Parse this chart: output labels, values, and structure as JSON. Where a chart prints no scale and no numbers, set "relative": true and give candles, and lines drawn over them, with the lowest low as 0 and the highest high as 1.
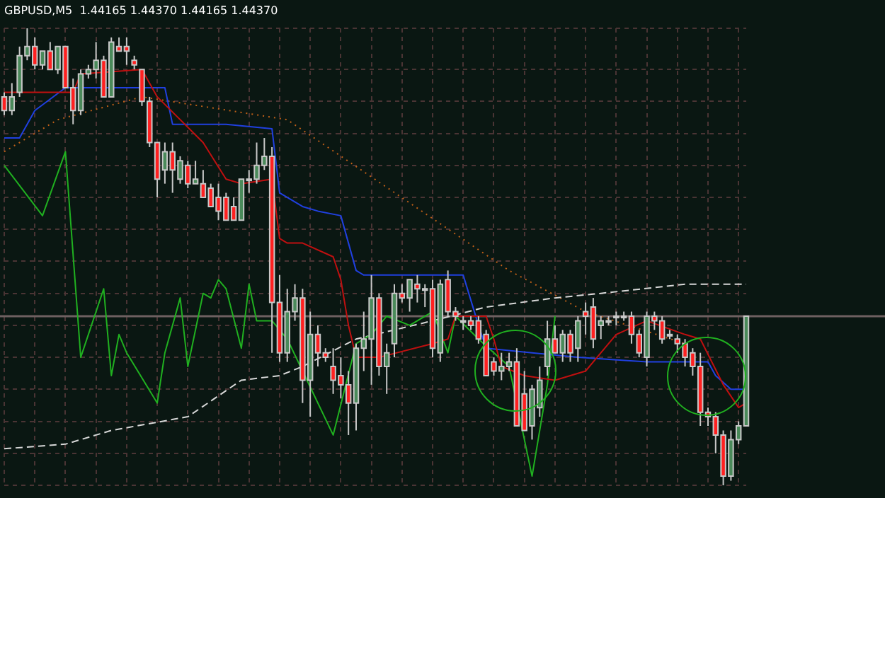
{
  "chart_data": {
    "type": "candlestick",
    "title": "GBPUSD,M5  1.44165 1.44370 1.44165 1.44370",
    "relative": true,
    "grid": true,
    "legend": false,
    "marker": "none",
    "categories": [
      null,
      null,
      null,
      null,
      null,
      null,
      null,
      null,
      null,
      null,
      null,
      null,
      null,
      null,
      null,
      null,
      null,
      null,
      null,
      null,
      null,
      null,
      null,
      null,
      null,
      null,
      null,
      null,
      null,
      null,
      null,
      null,
      null,
      null,
      null,
      null,
      null,
      null,
      null,
      null,
      null,
      null,
      null,
      null,
      null,
      null,
      null,
      null,
      null,
      null,
      null,
      null,
      null,
      null,
      null,
      null,
      null,
      null,
      null,
      null,
      null,
      null,
      null,
      null,
      null,
      null,
      null,
      null,
      null,
      null,
      null,
      null,
      null,
      null,
      null,
      null,
      null,
      null,
      null,
      null,
      null,
      null,
      null,
      null,
      null,
      null,
      null,
      null,
      null,
      null,
      null,
      null,
      null,
      null,
      null,
      null,
      null,
      null
    ],
    "ohlc": [
      [
        0.85,
        0.86,
        0.81,
        0.82
      ],
      [
        0.82,
        0.88,
        0.81,
        0.85
      ],
      [
        0.86,
        0.96,
        0.85,
        0.94
      ],
      [
        0.94,
        1.0,
        0.93,
        0.96
      ],
      [
        0.96,
        0.98,
        0.91,
        0.92
      ],
      [
        0.92,
        0.95,
        0.91,
        0.95
      ],
      [
        0.95,
        0.97,
        0.91,
        0.91
      ],
      [
        0.91,
        0.96,
        0.9,
        0.96
      ],
      [
        0.96,
        0.96,
        0.87,
        0.87
      ],
      [
        0.87,
        0.89,
        0.79,
        0.82
      ],
      [
        0.82,
        0.91,
        0.81,
        0.9
      ],
      [
        0.9,
        0.92,
        0.89,
        0.91
      ],
      [
        0.91,
        0.97,
        0.89,
        0.93
      ],
      [
        0.93,
        0.94,
        0.85,
        0.85
      ],
      [
        0.85,
        0.98,
        0.85,
        0.97
      ],
      [
        0.96,
        0.98,
        0.95,
        0.95
      ],
      [
        0.96,
        0.98,
        0.92,
        0.95
      ],
      [
        0.93,
        0.94,
        0.91,
        0.92
      ],
      [
        0.91,
        0.91,
        0.83,
        0.84
      ],
      [
        0.84,
        0.85,
        0.74,
        0.75
      ],
      [
        0.75,
        0.75,
        0.63,
        0.67
      ],
      [
        0.69,
        0.75,
        0.66,
        0.73
      ],
      [
        0.73,
        0.75,
        0.64,
        0.69
      ],
      [
        0.67,
        0.72,
        0.66,
        0.71
      ],
      [
        0.7,
        0.71,
        0.65,
        0.66
      ],
      [
        0.66,
        0.71,
        0.66,
        0.67
      ],
      [
        0.66,
        0.69,
        0.63,
        0.63
      ],
      [
        0.65,
        0.66,
        0.61,
        0.61
      ],
      [
        0.63,
        0.66,
        0.58,
        0.6
      ],
      [
        0.63,
        0.64,
        0.58,
        0.58
      ],
      [
        0.61,
        0.63,
        0.58,
        0.58
      ],
      [
        0.58,
        0.67,
        0.58,
        0.67
      ],
      [
        0.67,
        0.69,
        0.64,
        0.67
      ],
      [
        0.67,
        0.75,
        0.66,
        0.7
      ],
      [
        0.7,
        0.76,
        0.69,
        0.72
      ],
      [
        0.72,
        0.74,
        0.29,
        0.4
      ],
      [
        0.4,
        0.46,
        0.27,
        0.29
      ],
      [
        0.29,
        0.43,
        0.27,
        0.38
      ],
      [
        0.38,
        0.44,
        0.36,
        0.41
      ],
      [
        0.41,
        0.43,
        0.18,
        0.23
      ],
      [
        0.23,
        0.38,
        0.15,
        0.33
      ],
      [
        0.33,
        0.35,
        0.26,
        0.29
      ],
      [
        0.29,
        0.3,
        0.27,
        0.28
      ],
      [
        0.26,
        0.3,
        0.2,
        0.23
      ],
      [
        0.24,
        0.28,
        0.19,
        0.22
      ],
      [
        0.22,
        0.25,
        0.11,
        0.18
      ],
      [
        0.18,
        0.31,
        0.12,
        0.3
      ],
      [
        0.3,
        0.38,
        0.25,
        0.32
      ],
      [
        0.32,
        0.46,
        0.22,
        0.41
      ],
      [
        0.41,
        0.42,
        0.24,
        0.26
      ],
      [
        0.26,
        0.31,
        0.2,
        0.29
      ],
      [
        0.31,
        0.44,
        0.28,
        0.42
      ],
      [
        0.42,
        0.44,
        0.4,
        0.41
      ],
      [
        0.41,
        0.45,
        0.38,
        0.45
      ],
      [
        0.44,
        0.46,
        0.4,
        0.43
      ],
      [
        0.43,
        0.44,
        0.39,
        0.43
      ],
      [
        0.43,
        0.45,
        0.28,
        0.3
      ],
      [
        0.29,
        0.45,
        0.27,
        0.44
      ],
      [
        0.45,
        0.47,
        0.37,
        0.38
      ],
      [
        0.38,
        0.39,
        0.36,
        0.37
      ],
      [
        0.36,
        0.37,
        0.34,
        0.36
      ],
      [
        0.36,
        0.37,
        0.34,
        0.35
      ],
      [
        0.36,
        0.37,
        0.31,
        0.32
      ],
      [
        0.33,
        0.34,
        0.24,
        0.24
      ],
      [
        0.27,
        0.28,
        0.24,
        0.25
      ],
      [
        0.25,
        0.29,
        0.23,
        0.26
      ],
      [
        0.26,
        0.29,
        0.25,
        0.27
      ],
      [
        0.27,
        0.3,
        0.13,
        0.13
      ],
      [
        0.2,
        0.25,
        0.12,
        0.12
      ],
      [
        0.13,
        0.22,
        0.1,
        0.21
      ],
      [
        0.17,
        0.26,
        0.15,
        0.23
      ],
      [
        0.26,
        0.36,
        0.24,
        0.32
      ],
      [
        0.32,
        0.35,
        0.29,
        0.29
      ],
      [
        0.29,
        0.34,
        0.27,
        0.33
      ],
      [
        0.33,
        0.34,
        0.27,
        0.29
      ],
      [
        0.3,
        0.37,
        0.27,
        0.36
      ],
      [
        0.38,
        0.4,
        0.33,
        0.37
      ],
      [
        0.39,
        0.41,
        0.3,
        0.32
      ],
      [
        0.35,
        0.37,
        0.32,
        0.36
      ],
      [
        0.36,
        0.37,
        0.35,
        0.36
      ],
      [
        0.37,
        0.38,
        0.35,
        0.37
      ],
      [
        0.37,
        0.38,
        0.36,
        0.37
      ],
      [
        0.37,
        0.38,
        0.31,
        0.33
      ],
      [
        0.33,
        0.34,
        0.28,
        0.29
      ],
      [
        0.28,
        0.38,
        0.26,
        0.37
      ],
      [
        0.37,
        0.38,
        0.34,
        0.36
      ],
      [
        0.36,
        0.37,
        0.31,
        0.32
      ],
      [
        0.33,
        0.34,
        0.32,
        0.33
      ],
      [
        0.32,
        0.33,
        0.29,
        0.31
      ],
      [
        0.31,
        0.32,
        0.26,
        0.28
      ],
      [
        0.29,
        0.3,
        0.24,
        0.26
      ],
      [
        0.26,
        0.29,
        0.13,
        0.16
      ],
      [
        0.16,
        0.17,
        0.13,
        0.15
      ],
      [
        0.15,
        0.16,
        0.07,
        0.11
      ],
      [
        0.11,
        0.12,
        0.0,
        0.02
      ],
      [
        0.02,
        0.12,
        0.01,
        0.1
      ],
      [
        0.1,
        0.14,
        0.09,
        0.13
      ],
      [
        0.13,
        0.37,
        0.13,
        0.37
      ]
    ],
    "colors": [
      "#ff2020",
      "#4a8a5a",
      "#4a8a5a",
      "#4a8a5a",
      "#ff2020",
      "#4a8a5a",
      "#ff2020",
      "#4a8a5a",
      "#ff2020",
      "#ff2020",
      "#4a8a5a",
      "#4a8a5a",
      "#4a8a5a",
      "#ff2020",
      "#4a8a5a",
      "#ff2020",
      "#ff2020",
      "#ff2020",
      "#ff2020",
      "#ff2020",
      "#ff2020",
      "#4a8a5a",
      "#ff2020",
      "#4a8a5a",
      "#ff2020",
      "#4a8a5a",
      "#ff2020",
      "#ff2020",
      "#ff2020",
      "#ff2020",
      "#ff2020",
      "#4a8a5a",
      "#4a8a5a",
      "#4a8a5a",
      "#4a8a5a",
      "#ff2020",
      "#ff2020",
      "#4a8a5a",
      "#4a8a5a",
      "#ff2020",
      "#4a8a5a",
      "#ff2020",
      "#ff2020",
      "#ff2020",
      "#ff2020",
      "#ff2020",
      "#4a8a5a",
      "#4a8a5a",
      "#4a8a5a",
      "#ff2020",
      "#4a8a5a",
      "#4a8a5a",
      "#ff2020",
      "#4a8a5a",
      "#ff2020",
      "#4a8a5a",
      "#ff2020",
      "#4a8a5a",
      "#ff2020",
      "#ff2020",
      "#4a8a5a",
      "#ff2020",
      "#ff2020",
      "#ff2020",
      "#ff2020",
      "#4a8a5a",
      "#4a8a5a",
      "#ff2020",
      "#ff2020",
      "#4a8a5a",
      "#4a8a5a",
      "#4a8a5a",
      "#ff2020",
      "#4a8a5a",
      "#ff2020",
      "#4a8a5a",
      "#ff2020",
      "#ff2020",
      "#4a8a5a",
      "#4a8a5a",
      "#4a8a5a",
      "#4a8a5a",
      "#ff2020",
      "#ff2020",
      "#4a8a5a",
      "#ff2020",
      "#ff2020",
      "#4a8a5a",
      "#ff2020",
      "#ff2020",
      "#ff2020",
      "#ff2020",
      "#ff2020",
      "#ff2020",
      "#ff2020",
      "#4a8a5a",
      "#4a8a5a",
      "#4a8a5a"
    ],
    "ref_lines": [
      {
        "axis": "y",
        "value": 0.37,
        "color": "#6e6060"
      }
    ],
    "series": [
      {
        "type": "line",
        "color": "#c01010",
        "line_style": "solid",
        "values": [
          0.86,
          null,
          null,
          null,
          null,
          null,
          null,
          null,
          null,
          0.86,
          0.9,
          null,
          null,
          null,
          null,
          null,
          null,
          null,
          0.91,
          null,
          0.85,
          null,
          null,
          null,
          null,
          null,
          0.75,
          null,
          null,
          0.67,
          null,
          0.66,
          null,
          null,
          null,
          0.67,
          0.54,
          0.53,
          null,
          0.53,
          null,
          null,
          null,
          0.5,
          0.45,
          0.35,
          0.28,
          null,
          null,
          0.28,
          null,
          null,
          null,
          null,
          null,
          null,
          0.31,
          null,
          0.32,
          0.37,
          null,
          null,
          null,
          0.37,
          0.32,
          0.26,
          null,
          null,
          0.24,
          null,
          null,
          null,
          0.23,
          null,
          null,
          null,
          0.25,
          null,
          null,
          null,
          0.33,
          null,
          null,
          null,
          0.36,
          null,
          null,
          null,
          null,
          0.33,
          null,
          0.32,
          null,
          null,
          0.22,
          null,
          0.17,
          0.18
        ]
      },
      {
        "type": "line",
        "color": "#2040e0",
        "line_style": "solid",
        "values": [
          0.76,
          null,
          0.76,
          null,
          0.82,
          null,
          null,
          null,
          0.87,
          null,
          null,
          null,
          null,
          null,
          null,
          null,
          null,
          null,
          null,
          null,
          null,
          0.87,
          0.79,
          null,
          null,
          null,
          null,
          null,
          null,
          0.79,
          null,
          null,
          null,
          null,
          null,
          0.78,
          0.64,
          null,
          null,
          0.61,
          null,
          0.6,
          null,
          null,
          0.59,
          null,
          0.47,
          0.46,
          null,
          null,
          null,
          null,
          null,
          null,
          null,
          null,
          null,
          null,
          null,
          null,
          0.46,
          null,
          0.35,
          0.3,
          null,
          null,
          null,
          null,
          null,
          null,
          null,
          null,
          null,
          null,
          null,
          0.28,
          null,
          null,
          null,
          null,
          null,
          null,
          null,
          null,
          0.27,
          null,
          null,
          null,
          null,
          null,
          null,
          null,
          0.27,
          0.24,
          null,
          0.21,
          null,
          0.21
        ]
      },
      {
        "type": "line",
        "color": "#20b020",
        "line_style": "solid",
        "values": [
          0.7,
          null,
          null,
          null,
          null,
          0.59,
          null,
          null,
          0.73,
          null,
          0.28,
          null,
          null,
          0.43,
          0.24,
          0.33,
          0.29,
          null,
          null,
          null,
          0.18,
          0.29,
          null,
          0.41,
          0.26,
          null,
          0.42,
          0.41,
          0.45,
          0.43,
          null,
          0.3,
          0.44,
          0.36,
          null,
          0.36,
          null,
          0.32,
          null,
          0.25,
          null,
          null,
          null,
          0.11,
          null,
          null,
          0.31,
          null,
          0.33,
          null,
          0.37,
          null,
          null,
          0.35,
          null,
          null,
          0.38,
          null,
          0.29,
          0.37,
          null,
          null,
          0.32,
          null,
          null,
          null,
          0.26,
          null,
          null,
          0.02,
          null,
          0.22,
          0.37,
          null,
          null,
          null,
          null,
          null,
          null,
          null,
          null,
          null,
          null,
          null,
          null,
          null,
          null,
          null,
          null,
          null,
          null,
          null,
          null,
          null,
          null,
          null,
          null,
          null
        ]
      },
      {
        "type": "line",
        "color": "#d8d8d8",
        "line_style": "dashed",
        "values": [
          0.08,
          null,
          null,
          null,
          null,
          null,
          null,
          null,
          0.09,
          null,
          null,
          null,
          null,
          null,
          0.12,
          null,
          null,
          null,
          null,
          null,
          null,
          null,
          null,
          null,
          0.15,
          null,
          null,
          null,
          null,
          null,
          null,
          0.23,
          null,
          null,
          null,
          null,
          0.24,
          null,
          null,
          0.26,
          null,
          null,
          null,
          null,
          null,
          null,
          0.32,
          null,
          null,
          null,
          null,
          null,
          null,
          null,
          null,
          null,
          0.36,
          null,
          null,
          null,
          null,
          null,
          null,
          0.39,
          null,
          null,
          null,
          null,
          null,
          null,
          null,
          null,
          0.41,
          null,
          null,
          null,
          null,
          null,
          0.42,
          null,
          null,
          null,
          null,
          null,
          null,
          null,
          null,
          null,
          null,
          0.44,
          null,
          null,
          null,
          null,
          null,
          null,
          null,
          0.44
        ]
      },
      {
        "type": "line",
        "color": "#c06018",
        "line_style": "dotted",
        "values": [
          0.73,
          null,
          null,
          null,
          null,
          null,
          null,
          0.8,
          null,
          null,
          null,
          null,
          null,
          null,
          null,
          null,
          null,
          null,
          0.85,
          null,
          null,
          null,
          null,
          null,
          null,
          null,
          null,
          null,
          null,
          null,
          null,
          null,
          null,
          null,
          null,
          null,
          null,
          0.8,
          null,
          null,
          null,
          null,
          null,
          null,
          null,
          null,
          null,
          null,
          null,
          null,
          null,
          null,
          null,
          null,
          null,
          null,
          null,
          null,
          null,
          null,
          null,
          null,
          null,
          null,
          null,
          null,
          0.47,
          null,
          null,
          null,
          null,
          null,
          null,
          null,
          null,
          null,
          0.38,
          null,
          null,
          null,
          null,
          null,
          null,
          null,
          null,
          null,
          null,
          null,
          null,
          0.31,
          null,
          null,
          null,
          null,
          null,
          null,
          null,
          null
        ]
      }
    ]
  }
}
